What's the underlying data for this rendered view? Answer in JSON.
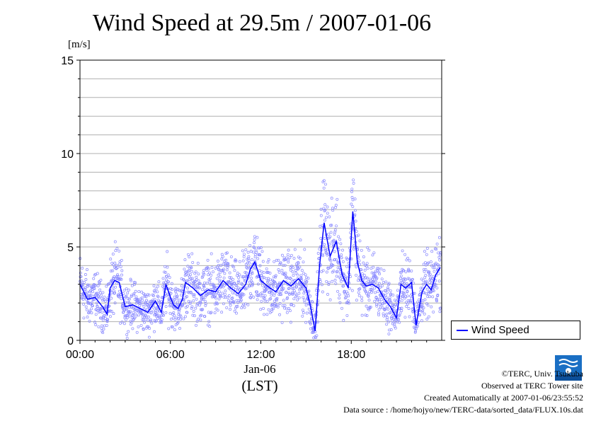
{
  "chart_data": {
    "type": "scatter",
    "title": "Wind Speed at 29.5m / 2007-01-06",
    "ylabel": "[m/s]",
    "xlabel_date": "Jan-06",
    "xlabel_unit": "(LST)",
    "ylim": [
      0,
      15
    ],
    "xlim_hours": [
      0,
      24
    ],
    "yticks": [
      0,
      5,
      10,
      15
    ],
    "xticks": [
      {
        "hour": 0,
        "label": "00:00"
      },
      {
        "hour": 6,
        "label": "06:00"
      },
      {
        "hour": 12,
        "label": "12:00"
      },
      {
        "hour": 18,
        "label": "18:00"
      }
    ],
    "grid": true,
    "legend": "right",
    "series": [
      {
        "name": "Wind Speed",
        "line_color": "#0000ff",
        "point_color": "#8888ff",
        "mean_x_hours": [
          0,
          0.5,
          1,
          1.5,
          1.8,
          2,
          2.3,
          2.6,
          3,
          3.5,
          4,
          4.5,
          5,
          5.4,
          5.7,
          6,
          6.2,
          6.5,
          6.8,
          7,
          7.5,
          8,
          8.5,
          9,
          9.5,
          10,
          10.5,
          11,
          11.3,
          11.6,
          12,
          12.3,
          12.6,
          13,
          13.5,
          14,
          14.5,
          15,
          15.3,
          15.6,
          15.9,
          16.2,
          16.6,
          17,
          17.4,
          17.8,
          18.1,
          18.4,
          18.7,
          19,
          19.4,
          19.8,
          20.2,
          20.6,
          21,
          21.3,
          21.6,
          22,
          22.3,
          22.7,
          23,
          23.3,
          23.6,
          23.9
        ],
        "mean_values": [
          3.0,
          2.2,
          2.3,
          1.8,
          1.4,
          2.8,
          3.2,
          3.1,
          1.8,
          1.9,
          1.7,
          1.5,
          2.1,
          1.5,
          3.0,
          2.3,
          1.9,
          1.7,
          2.2,
          3.1,
          2.8,
          2.4,
          2.7,
          2.6,
          3.2,
          2.8,
          2.5,
          3.0,
          3.8,
          4.2,
          3.2,
          3.0,
          2.8,
          2.6,
          3.2,
          2.9,
          3.3,
          2.8,
          1.8,
          0.5,
          4.0,
          6.3,
          4.5,
          5.3,
          3.5,
          2.8,
          6.9,
          4.2,
          3.2,
          2.9,
          3.0,
          2.8,
          2.2,
          1.8,
          1.2,
          3.0,
          2.8,
          3.1,
          0.8,
          2.6,
          3.0,
          2.7,
          3.5,
          3.9
        ],
        "scatter_note": "10-s samples scattered around the mean"
      }
    ]
  },
  "credits": {
    "copyright": "©TERC, Univ. Tsukuba",
    "site": "Observed at TERC Tower site",
    "created": "Created Automatically at 2007-01-06/23:55:52",
    "source": "Data source : /home/hojyo/new/TERC-data/sorted_data/FLUX.10s.dat"
  },
  "logo": {
    "text": "TERC",
    "color": "#1a6fc4"
  }
}
